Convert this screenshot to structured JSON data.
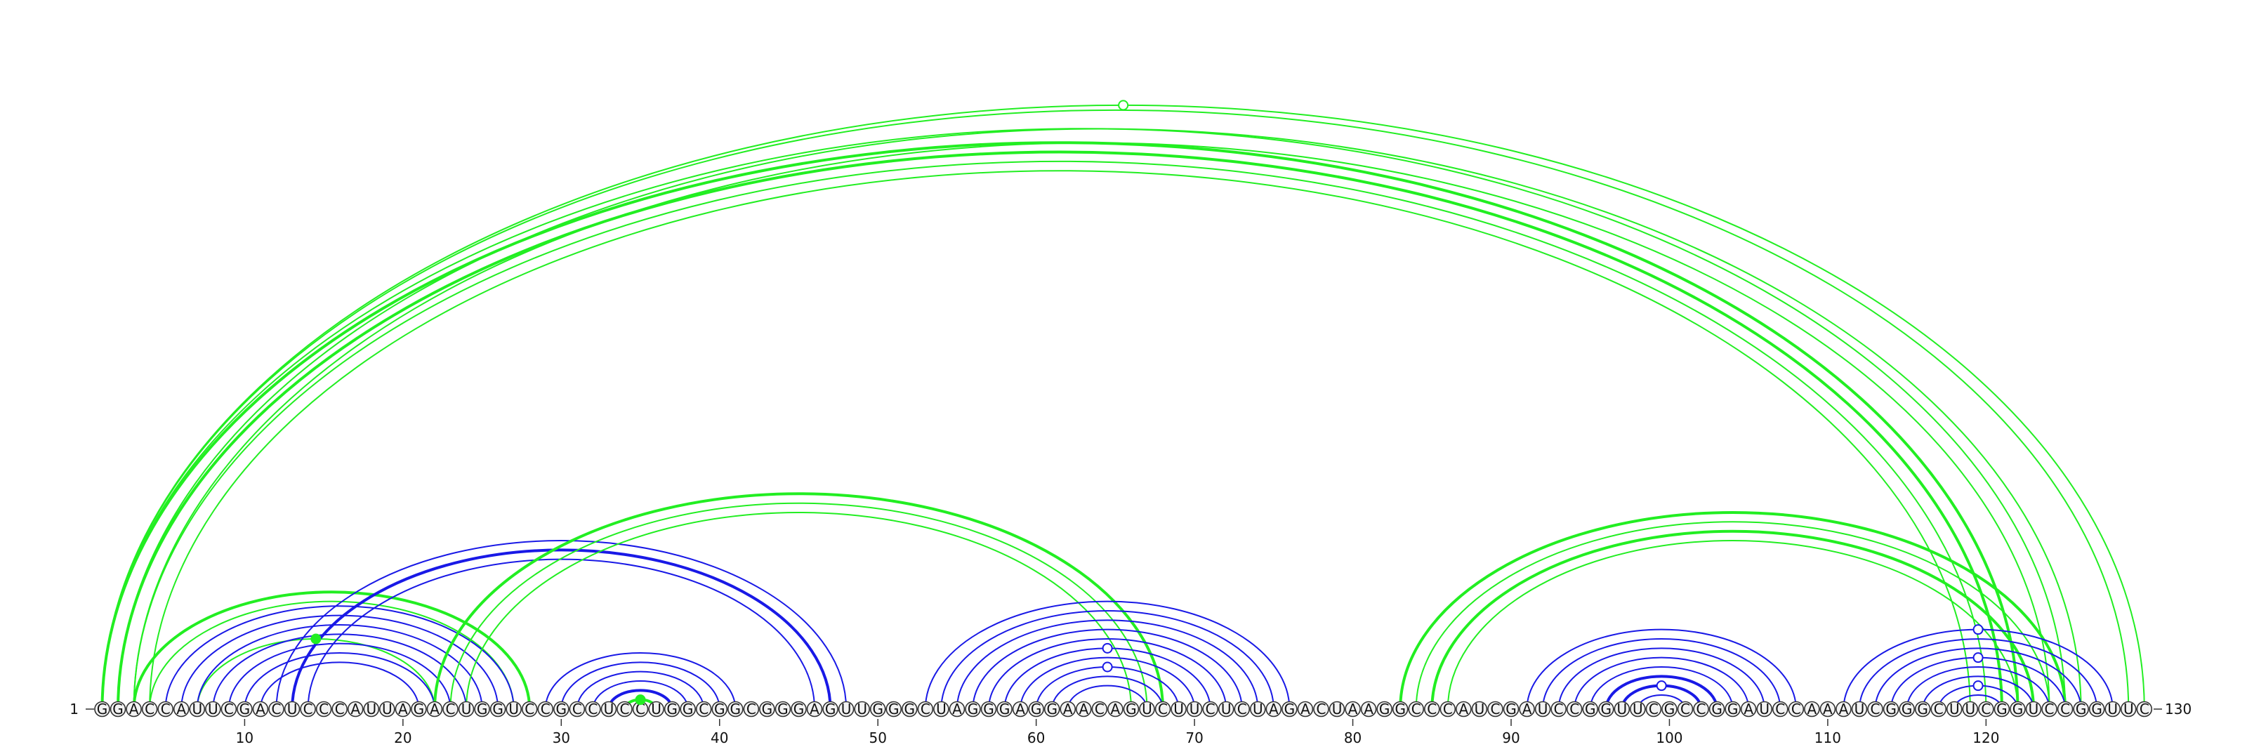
{
  "sequence": "GGACCAUUCGACUCCCAUUAGACUGGUCCGCCUCCUGGCGGCGGGAGUUGGGCUAGGGAGGAACAGUCUUCUCUAGACUAAGGCCCAUCGAUCCGGUUCGCCGGAUCCAAAUCGGGCUUCGGUCCGGUUC",
  "start_label": "1",
  "end_label": "130",
  "ticks": [
    "10",
    "20",
    "30",
    "40",
    "50",
    "60",
    "70",
    "80",
    "90",
    "100",
    "110",
    "120"
  ],
  "colors": {
    "structure_a": "#1919e6",
    "structure_b": "#22ee22",
    "text": "#111111"
  },
  "arcs": [
    {
      "i": 1,
      "j": 122,
      "set": "B",
      "w": 4
    },
    {
      "i": 2,
      "j": 121,
      "set": "B",
      "w": 4
    },
    {
      "i": 3,
      "j": 120,
      "set": "B",
      "w": 2
    },
    {
      "i": 4,
      "j": 119,
      "set": "B",
      "w": 2
    },
    {
      "i": 1,
      "j": 125,
      "set": "B",
      "w": 2
    },
    {
      "i": 2,
      "j": 126,
      "set": "B",
      "w": 2
    },
    {
      "i": 3,
      "j": 124,
      "set": "B",
      "w": 2
    },
    {
      "i": 1,
      "j": 130,
      "set": "B",
      "w": 2
    },
    {
      "i": 1,
      "j": 129,
      "set": "B",
      "w": 2
    },
    {
      "i": 3,
      "j": 28,
      "set": "B",
      "w": 4
    },
    {
      "i": 4,
      "j": 27,
      "set": "B",
      "w": 2
    },
    {
      "i": 7,
      "j": 22,
      "set": "B",
      "w": 2
    },
    {
      "i": 5,
      "j": 27,
      "set": "A",
      "w": 2
    },
    {
      "i": 6,
      "j": 26,
      "set": "A",
      "w": 2
    },
    {
      "i": 7,
      "j": 25,
      "set": "A",
      "w": 2
    },
    {
      "i": 8,
      "j": 24,
      "set": "A",
      "w": 2
    },
    {
      "i": 9,
      "j": 23,
      "set": "A",
      "w": 2
    },
    {
      "i": 10,
      "j": 22,
      "set": "A",
      "w": 2
    },
    {
      "i": 11,
      "j": 21,
      "set": "A",
      "w": 2
    },
    {
      "i": 12,
      "j": 48,
      "set": "A",
      "w": 2
    },
    {
      "i": 13,
      "j": 47,
      "set": "A",
      "w": 4
    },
    {
      "i": 14,
      "j": 46,
      "set": "A",
      "w": 2
    },
    {
      "i": 22,
      "j": 68,
      "set": "B",
      "w": 4
    },
    {
      "i": 23,
      "j": 67,
      "set": "B",
      "w": 2
    },
    {
      "i": 24,
      "j": 66,
      "set": "B",
      "w": 2
    },
    {
      "i": 29,
      "j": 41,
      "set": "A",
      "w": 2
    },
    {
      "i": 30,
      "j": 40,
      "set": "A",
      "w": 2
    },
    {
      "i": 31,
      "j": 39,
      "set": "A",
      "w": 2
    },
    {
      "i": 32,
      "j": 38,
      "set": "A",
      "w": 2
    },
    {
      "i": 33,
      "j": 37,
      "set": "A",
      "w": 4
    },
    {
      "i": 34,
      "j": 36,
      "set": "B",
      "w": 4
    },
    {
      "i": 53,
      "j": 76,
      "set": "A",
      "w": 2
    },
    {
      "i": 54,
      "j": 75,
      "set": "A",
      "w": 2
    },
    {
      "i": 55,
      "j": 74,
      "set": "A",
      "w": 2
    },
    {
      "i": 56,
      "j": 73,
      "set": "A",
      "w": 2
    },
    {
      "i": 57,
      "j": 72,
      "set": "A",
      "w": 2
    },
    {
      "i": 58,
      "j": 71,
      "set": "A",
      "w": 2
    },
    {
      "i": 59,
      "j": 70,
      "set": "A",
      "w": 2
    },
    {
      "i": 60,
      "j": 69,
      "set": "A",
      "w": 2
    },
    {
      "i": 61,
      "j": 68,
      "set": "A",
      "w": 2
    },
    {
      "i": 62,
      "j": 67,
      "set": "A",
      "w": 2
    },
    {
      "i": 83,
      "j": 125,
      "set": "B",
      "w": 4
    },
    {
      "i": 84,
      "j": 124,
      "set": "B",
      "w": 2
    },
    {
      "i": 85,
      "j": 123,
      "set": "B",
      "w": 4
    },
    {
      "i": 86,
      "j": 122,
      "set": "B",
      "w": 2
    },
    {
      "i": 91,
      "j": 108,
      "set": "A",
      "w": 2
    },
    {
      "i": 92,
      "j": 107,
      "set": "A",
      "w": 2
    },
    {
      "i": 93,
      "j": 106,
      "set": "A",
      "w": 2
    },
    {
      "i": 94,
      "j": 105,
      "set": "A",
      "w": 2
    },
    {
      "i": 95,
      "j": 104,
      "set": "A",
      "w": 2
    },
    {
      "i": 96,
      "j": 103,
      "set": "A",
      "w": 4
    },
    {
      "i": 97,
      "j": 102,
      "set": "A",
      "w": 4
    },
    {
      "i": 98,
      "j": 101,
      "set": "A",
      "w": 2
    },
    {
      "i": 111,
      "j": 128,
      "set": "A",
      "w": 2
    },
    {
      "i": 112,
      "j": 127,
      "set": "A",
      "w": 2
    },
    {
      "i": 113,
      "j": 126,
      "set": "A",
      "w": 2
    },
    {
      "i": 114,
      "j": 125,
      "set": "A",
      "w": 2
    },
    {
      "i": 115,
      "j": 124,
      "set": "A",
      "w": 2
    },
    {
      "i": 116,
      "j": 123,
      "set": "A",
      "w": 2
    },
    {
      "i": 117,
      "j": 122,
      "set": "A",
      "w": 2
    },
    {
      "i": 118,
      "j": 121,
      "set": "A",
      "w": 2
    }
  ],
  "markers": [
    {
      "i": 1,
      "j": 130,
      "set": "B",
      "filled": false
    },
    {
      "i": 7,
      "j": 22,
      "set": "B",
      "filled": true
    },
    {
      "i": 34,
      "j": 36,
      "set": "B",
      "filled": true
    },
    {
      "i": 58,
      "j": 71,
      "set": "A",
      "filled": false
    },
    {
      "i": 60,
      "j": 69,
      "set": "A",
      "filled": false
    },
    {
      "i": 97,
      "j": 102,
      "set": "A",
      "filled": false
    },
    {
      "i": 111,
      "j": 128,
      "set": "A",
      "filled": false
    },
    {
      "i": 114,
      "j": 125,
      "set": "A",
      "filled": false
    },
    {
      "i": 117,
      "j": 122,
      "set": "A",
      "filled": false
    }
  ]
}
